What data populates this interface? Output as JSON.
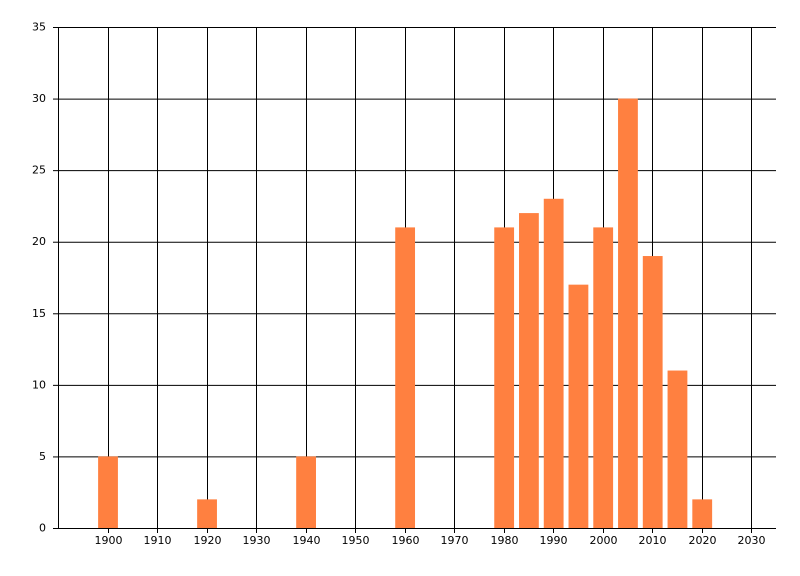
{
  "chart_data": {
    "type": "bar",
    "x": [
      1900,
      1920,
      1940,
      1960,
      1980,
      1985,
      1990,
      1995,
      2000,
      2005,
      2010,
      2015,
      2020
    ],
    "values": [
      5,
      2,
      5,
      21,
      21,
      22,
      23,
      17,
      21,
      30,
      19,
      11,
      2
    ],
    "color": "#ff8040",
    "xlim": [
      1890,
      2035
    ],
    "xticks": [
      1900,
      1910,
      1920,
      1930,
      1940,
      1950,
      1960,
      1970,
      1980,
      1990,
      2000,
      2010,
      2020,
      2030
    ],
    "ylim": [
      0,
      35
    ],
    "yticks": [
      0,
      5,
      10,
      15,
      20,
      25,
      30,
      35
    ],
    "grid": true
  }
}
